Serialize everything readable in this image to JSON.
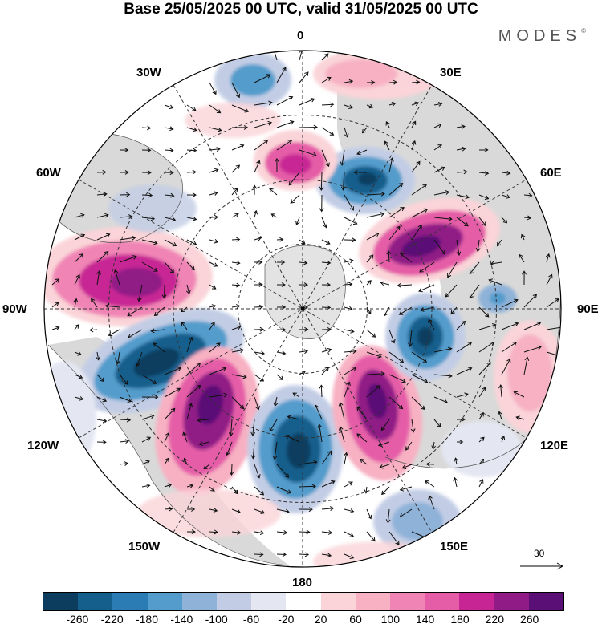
{
  "title": "Base 25/05/2025 00 UTC, valid 31/05/2025 00 UTC",
  "brand": "MODES",
  "brand_mark": "©",
  "longitude_labels": {
    "lon_0": "0",
    "lon_30e": "30E",
    "lon_60e": "60E",
    "lon_90e": "90E",
    "lon_120e": "120E",
    "lon_150e": "150E",
    "lon_180": "180",
    "lon_150w": "150W",
    "lon_120w": "120W",
    "lon_90w": "90W",
    "lon_60w": "60W",
    "lon_30w": "30W"
  },
  "vector_scale": "30",
  "colorbar": {
    "colors": [
      "#0d3d5e",
      "#155f8d",
      "#2b7cb5",
      "#539ccc",
      "#8fb2d8",
      "#c2cde5",
      "#e4e6f2",
      "#ffffff",
      "#fad4d8",
      "#f7b1c3",
      "#f085b5",
      "#e55da7",
      "#c82594",
      "#901a86",
      "#5a0f76"
    ],
    "labels": [
      "-260",
      "-220",
      "-180",
      "-140",
      "-100",
      "-60",
      "-20",
      "20",
      "60",
      "100",
      "140",
      "180",
      "220",
      "260"
    ]
  },
  "colors": {
    "land": "#d9d9d9",
    "grid": "#333333"
  }
}
